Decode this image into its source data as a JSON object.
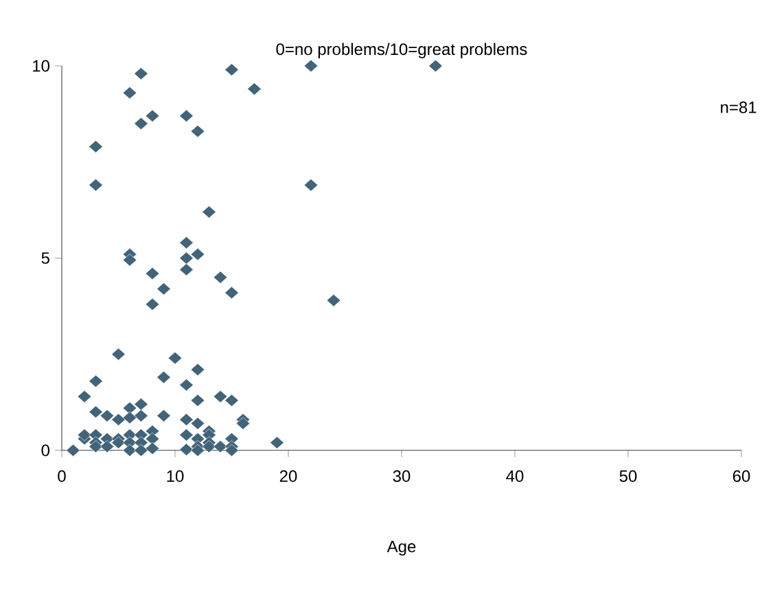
{
  "chart_data": {
    "type": "scatter",
    "title": "0=no problems/10=great problems",
    "xlabel": "Age",
    "annotations": [
      "n=81"
    ],
    "marker": "diamond",
    "grid": false,
    "xlim": [
      0,
      60
    ],
    "xticks": [
      0,
      10,
      20,
      30,
      40,
      50,
      60
    ],
    "ylim": [
      0,
      10
    ],
    "yticks": [
      0,
      5,
      10
    ],
    "series": [
      {
        "color": "#41647a",
        "x": [
          3,
          3,
          6,
          7,
          7,
          8,
          11,
          12,
          13,
          15,
          17,
          22,
          22,
          33,
          11,
          6,
          6,
          8,
          9,
          8,
          11,
          11,
          12,
          14,
          15,
          24,
          5,
          10,
          12,
          3,
          9,
          11,
          2,
          12,
          14,
          15,
          3,
          4,
          5,
          6,
          7,
          7,
          6,
          9,
          11,
          12,
          13,
          16,
          16,
          19,
          1,
          2,
          2,
          3,
          3,
          3,
          4,
          4,
          5,
          5,
          6,
          6,
          6,
          7,
          7,
          7,
          8,
          8,
          8,
          11,
          11,
          12,
          12,
          12,
          13,
          13,
          13,
          14,
          15,
          15,
          15
        ],
        "values": [
          7.9,
          6.9,
          9.3,
          9.8,
          8.5,
          8.7,
          8.7,
          8.3,
          6.2,
          9.9,
          9.4,
          10,
          6.9,
          10,
          5.4,
          5.1,
          4.95,
          4.6,
          4.2,
          3.8,
          5.0,
          4.7,
          5.1,
          4.5,
          4.1,
          3.9,
          2.5,
          2.4,
          2.1,
          1.8,
          1.9,
          1.7,
          1.4,
          1.3,
          1.4,
          1.3,
          1.0,
          0.9,
          0.8,
          1.1,
          1.2,
          0.9,
          0.85,
          0.9,
          0.8,
          0.7,
          0.5,
          0.8,
          0.7,
          0.2,
          0,
          0.3,
          0.4,
          0.4,
          0.2,
          0.1,
          0.3,
          0.1,
          0.3,
          0.2,
          0.4,
          0.2,
          0,
          0.4,
          0.2,
          0,
          0.5,
          0.3,
          0.05,
          0.02,
          0.4,
          0.3,
          0.1,
          0,
          0.4,
          0.2,
          0.1,
          0.1,
          0.3,
          0.1,
          0
        ]
      }
    ]
  }
}
